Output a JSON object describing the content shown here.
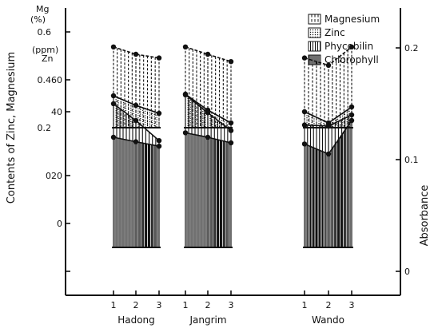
{
  "chart_data": {
    "type": "line",
    "yaxis_left": {
      "label": "Contents of Zinc, Magnesium",
      "mg_unit_lines": [
        "Mg",
        "(%)"
      ],
      "zn_unit_lines": [
        "(ppm)",
        "Zn"
      ],
      "mg_ticks": [
        "0.6",
        "0.4",
        "0.2",
        "0"
      ],
      "zn_ticks": [
        "60",
        "40",
        "20",
        "0"
      ]
    },
    "yaxis_right": {
      "label": "Absorbance",
      "ticks": [
        "0.2",
        "0.1",
        "0"
      ]
    },
    "groups": [
      "Hadong",
      "Jangrim",
      "Wando"
    ],
    "x_ticks": [
      "1",
      "2",
      "3"
    ],
    "legend": [
      {
        "name": "Magnesium",
        "pattern": "dash-v"
      },
      {
        "name": "Zinc",
        "pattern": "dot"
      },
      {
        "name": "Phycobilin",
        "pattern": "solid-v"
      },
      {
        "name": "Chlorophyll",
        "pattern": "dense-v"
      }
    ],
    "series": [
      {
        "name": "Magnesium",
        "axis": "Mg (%)",
        "values": {
          "Hadong": [
            0.42,
            0.4,
            0.39
          ],
          "Jangrim": [
            0.42,
            0.4,
            0.38
          ],
          "Wando": [
            0.39,
            0.37,
            0.42
          ]
        }
      },
      {
        "name": "Zinc",
        "axis": "Zn (ppm)",
        "values": {
          "Hadong": [
            50,
            44,
            39
          ],
          "Jangrim": [
            51,
            41,
            33
          ],
          "Wando": [
            40,
            33,
            43
          ]
        }
      },
      {
        "name": "Phycobilin",
        "axis": "Absorbance",
        "values": {
          "Hadong": [
            0.15,
            0.135,
            0.117
          ],
          "Jangrim": [
            0.158,
            0.142,
            0.126
          ],
          "Wando": [
            0.131,
            0.13,
            0.14
          ]
        }
      },
      {
        "name": "Chlorophyll",
        "axis": "Absorbance",
        "values": {
          "Hadong": [
            0.12,
            0.116,
            0.112
          ],
          "Jangrim": [
            0.124,
            0.12,
            0.115
          ],
          "Wando": [
            0.114,
            0.105,
            0.135
          ]
        }
      }
    ]
  }
}
